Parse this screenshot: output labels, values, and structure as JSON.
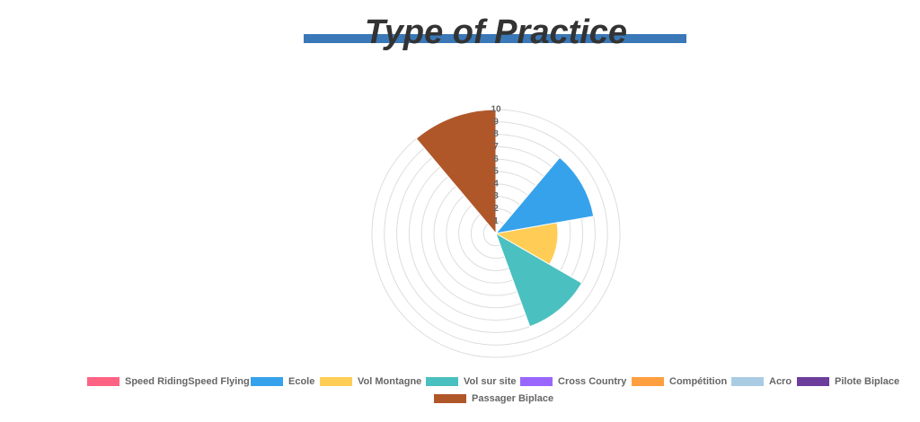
{
  "chart_data": {
    "type": "polarArea",
    "title": "Type of Practice",
    "categories": [
      "Speed RidingSpeed Flying",
      "Ecole",
      "Vol Montagne",
      "Vol sur site",
      "Cross Country",
      "Compétition",
      "Acro",
      "Pilote Biplace",
      "Passager Biplace"
    ],
    "values": [
      0,
      8,
      5,
      8,
      0,
      0,
      0,
      0,
      10
    ],
    "colors": [
      "#ff6384",
      "#36a2eb",
      "#ffcd56",
      "#4bc0c0",
      "#9966ff",
      "#ff9f40",
      "#a9cce3",
      "#6c3d9a",
      "#b0572a"
    ],
    "rlim": [
      0,
      10
    ],
    "rticks": [
      1,
      2,
      3,
      4,
      5,
      6,
      7,
      8,
      9,
      10
    ],
    "grid": true
  }
}
